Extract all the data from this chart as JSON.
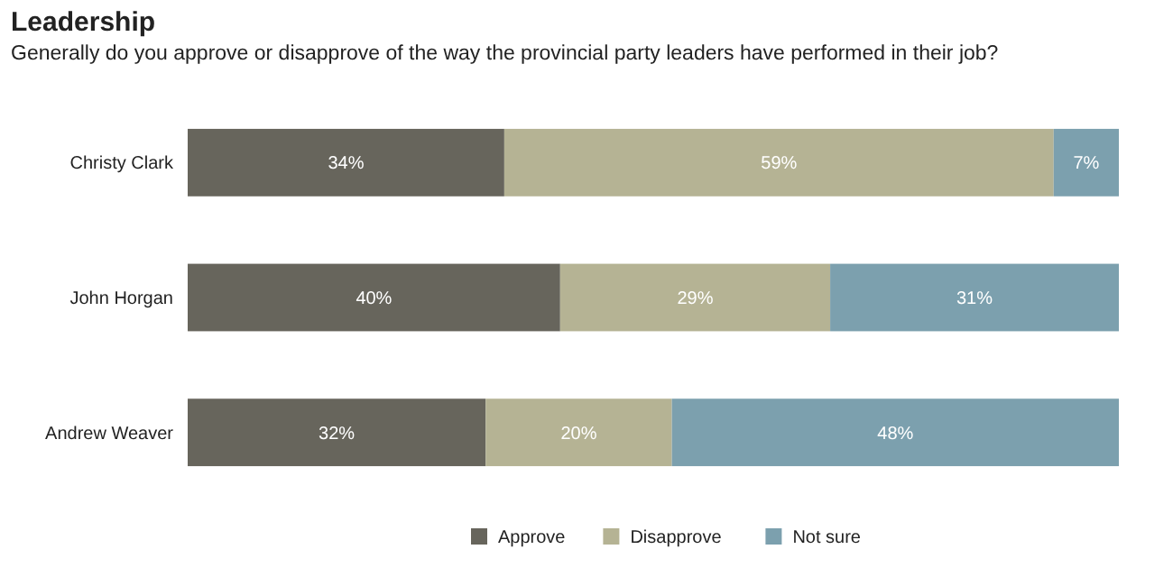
{
  "chart_data": {
    "type": "bar",
    "orientation": "horizontal",
    "stacked": true,
    "title": "Leadership",
    "subtitle": "Generally do you approve or disapprove of the way the provincial party leaders have performed in their job?",
    "categories": [
      "Christy Clark",
      "John Horgan",
      "Andrew Weaver"
    ],
    "series": [
      {
        "name": "Approve",
        "color": "#67655c",
        "values": [
          34,
          40,
          32
        ],
        "value_labels": [
          "34%",
          "40%",
          "32%"
        ]
      },
      {
        "name": "Disapprove",
        "color": "#b5b394",
        "values": [
          59,
          29,
          20
        ],
        "value_labels": [
          "59%",
          "29%",
          "20%"
        ]
      },
      {
        "name": "Not sure",
        "color": "#7ca0ae",
        "values": [
          7,
          31,
          48
        ],
        "value_labels": [
          "7%",
          "31%",
          "48%"
        ]
      }
    ],
    "xlim": [
      0,
      100
    ],
    "tick_labels": "y",
    "legend": "bottom"
  }
}
